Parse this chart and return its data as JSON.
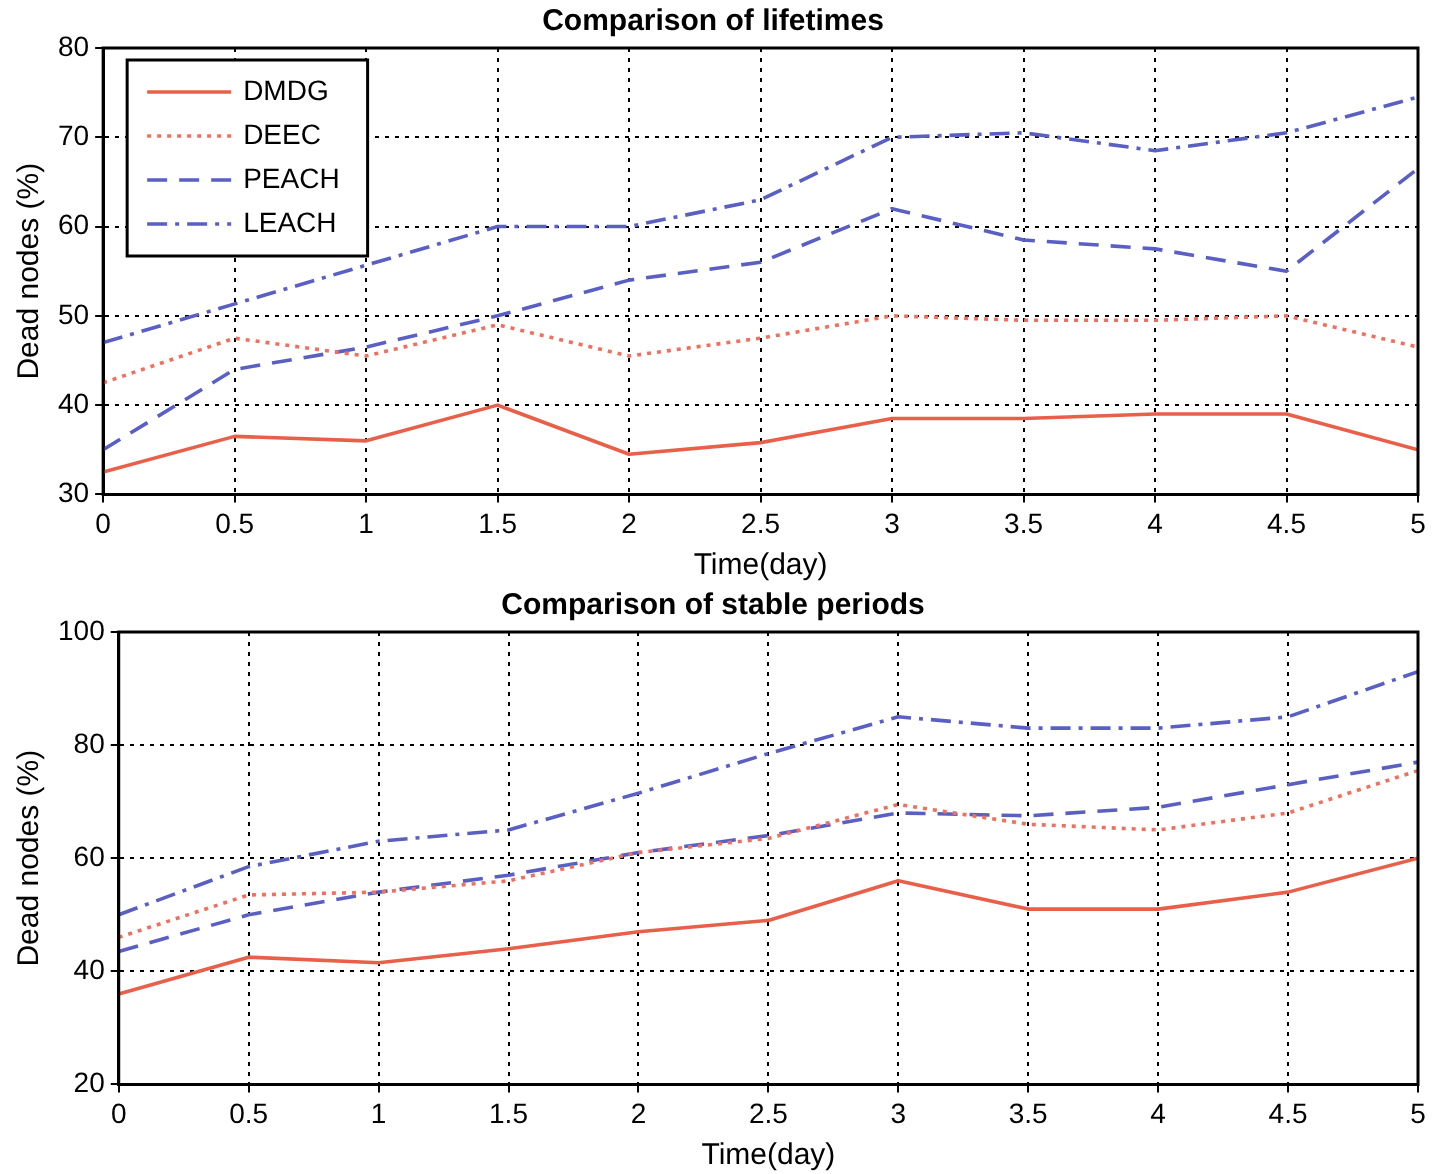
{
  "chart_data": [
    {
      "type": "line",
      "title": "Comparison of lifetimes",
      "xlabel": "Time(day)",
      "ylabel": "Dead nodes (%)",
      "x": [
        0,
        0.5,
        1,
        1.5,
        2,
        2.5,
        3,
        3.5,
        4,
        4.5,
        5
      ],
      "series": [
        {
          "name": "DMDG",
          "color": "#e8604a",
          "line_style": "solid",
          "values": [
            32.5,
            36.5,
            36,
            40,
            34.5,
            35.8,
            38.5,
            38.5,
            39,
            39,
            35
          ]
        },
        {
          "name": "DEEC",
          "color": "#f07060",
          "line_style": "dotted",
          "values": [
            42.5,
            47.5,
            45.5,
            49,
            45.5,
            47.5,
            50,
            49.5,
            49.5,
            50,
            46.5
          ]
        },
        {
          "name": "PEACH",
          "color": "#5a5fc4",
          "line_style": "dashed",
          "values": [
            35,
            44,
            46.5,
            50,
            54,
            56,
            62,
            58.5,
            57.5,
            55,
            66.5
          ]
        },
        {
          "name": "LEACH",
          "color": "#5a5fc4",
          "line_style": "dashdot",
          "values": [
            47,
            null,
            null,
            60,
            60,
            63,
            70,
            70.5,
            68.5,
            70.5,
            74.5
          ]
        }
      ],
      "xlim": [
        0,
        5
      ],
      "xticks": [
        0,
        0.5,
        1,
        1.5,
        2,
        2.5,
        3,
        3.5,
        4,
        4.5,
        5
      ],
      "ylim": [
        30,
        80
      ],
      "yticks": [
        30,
        40,
        50,
        60,
        70,
        80
      ],
      "grid": true,
      "legend": "top left",
      "marker": "none"
    },
    {
      "type": "line",
      "title": "Comparison of stable periods",
      "xlabel": "Time(day)",
      "ylabel": "Dead nodes (%)",
      "x": [
        0,
        0.5,
        1,
        1.5,
        2,
        2.5,
        3,
        3.5,
        4,
        4.5,
        5
      ],
      "series": [
        {
          "color": "#e8604a",
          "line_style": "solid",
          "values": [
            36,
            42.5,
            41.5,
            44,
            47,
            49,
            56,
            51,
            51,
            54,
            60
          ]
        },
        {
          "color": "#f07060",
          "line_style": "dotted",
          "values": [
            46,
            53.5,
            54,
            56,
            61,
            63.5,
            69.5,
            66,
            65,
            68,
            75.5
          ]
        },
        {
          "color": "#5a5fc4",
          "line_style": "dashed",
          "values": [
            43.5,
            50,
            54,
            57,
            61,
            64,
            68,
            67.5,
            69,
            73,
            77
          ]
        },
        {
          "color": "#5a5fc4",
          "line_style": "dashdot",
          "values": [
            50,
            58.5,
            63,
            65,
            71.5,
            78.5,
            85,
            83,
            83,
            85,
            93
          ]
        }
      ],
      "xlim": [
        0,
        5
      ],
      "xticks": [
        0,
        0.5,
        1,
        1.5,
        2,
        2.5,
        3,
        3.5,
        4,
        4.5,
        5
      ],
      "ylim": [
        20,
        100
      ],
      "yticks": [
        20,
        40,
        60,
        80,
        100
      ],
      "grid": true,
      "marker": "none"
    }
  ]
}
